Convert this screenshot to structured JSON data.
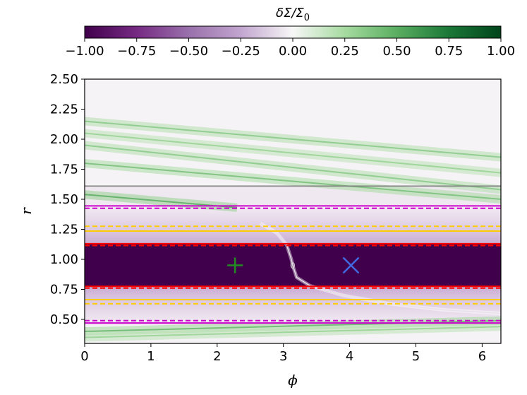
{
  "chart_data": {
    "type": "heatmap",
    "title": "",
    "xlabel": "ϕ",
    "ylabel": "r",
    "xlim": [
      0,
      6.283
    ],
    "ylim": [
      0.3,
      2.5
    ],
    "x_ticks": [
      0,
      1,
      2,
      3,
      4,
      5,
      6
    ],
    "x_tick_labels": [
      "0",
      "1",
      "2",
      "3",
      "4",
      "5",
      "6"
    ],
    "y_ticks": [
      0.5,
      0.75,
      1.0,
      1.25,
      1.5,
      1.75,
      2.0,
      2.25,
      2.5
    ],
    "y_tick_labels": [
      "0.50",
      "0.75",
      "1.00",
      "1.25",
      "1.50",
      "1.75",
      "2.00",
      "2.25",
      "2.50"
    ],
    "colorbar": {
      "label": "δΣ/Σ₀",
      "label_main": "δΣ/Σ",
      "label_sub": "0",
      "min": -1.0,
      "max": 1.0,
      "ticks": [
        -1.0,
        -0.75,
        -0.5,
        -0.25,
        0.0,
        0.25,
        0.5,
        0.75,
        1.0
      ],
      "tick_labels": [
        "−1.00",
        "−0.75",
        "−0.50",
        "−0.25",
        "0.00",
        "0.25",
        "0.50",
        "0.75",
        "1.00"
      ],
      "colormap": "PRGn",
      "low_color": "#40004b",
      "high_color": "#00441b"
    },
    "regions": [
      {
        "r_min": 0.77,
        "r_max": 1.13,
        "value": -1.0
      }
    ],
    "horizontal_lines": [
      {
        "r": 1.61,
        "color": "#808080",
        "style": "solid"
      },
      {
        "r": 1.445,
        "color": "#cc00cc",
        "style": "solid"
      },
      {
        "r": 1.425,
        "color": "#cc00cc",
        "style": "dashed"
      },
      {
        "r": 0.47,
        "color": "#cc00cc",
        "style": "solid"
      },
      {
        "r": 0.49,
        "color": "#cc00cc",
        "style": "dashed"
      },
      {
        "r": 1.275,
        "color": "#ffcc00",
        "style": "dashed"
      },
      {
        "r": 1.235,
        "color": "#ffcc00",
        "style": "solid"
      },
      {
        "r": 0.665,
        "color": "#ffcc00",
        "style": "solid"
      },
      {
        "r": 0.63,
        "color": "#ffcc00",
        "style": "dashed"
      },
      {
        "r": 1.13,
        "color": "#ff0000",
        "style": "solid"
      },
      {
        "r": 1.115,
        "color": "#ff0000",
        "style": "dashed"
      },
      {
        "r": 0.775,
        "color": "#ff0000",
        "style": "solid"
      },
      {
        "r": 0.76,
        "color": "#ff0000",
        "style": "dashed"
      }
    ],
    "markers": [
      {
        "phi": 2.27,
        "r": 0.95,
        "symbol": "+",
        "color": "#228b22"
      },
      {
        "phi": 4.02,
        "r": 0.95,
        "symbol": "x",
        "color": "#4169e1"
      },
      {
        "phi": 3.14,
        "r": 0.95,
        "symbol": "o",
        "color": "#cccccc"
      }
    ],
    "wake_curve": [
      [
        2.65,
        1.3
      ],
      [
        2.9,
        1.22
      ],
      [
        3.05,
        1.12
      ],
      [
        3.12,
        1.0
      ],
      [
        3.14,
        0.95
      ],
      [
        3.2,
        0.85
      ],
      [
        3.4,
        0.78
      ],
      [
        3.9,
        0.7
      ],
      [
        4.6,
        0.63
      ],
      [
        5.4,
        0.58
      ],
      [
        6.283,
        0.55
      ]
    ],
    "stripes": [
      {
        "phi0": 0.0,
        "r0": 2.15,
        "phi1": 6.283,
        "r1": 1.85,
        "value": 0.35
      },
      {
        "phi0": 0.0,
        "r0": 2.05,
        "phi1": 6.283,
        "r1": 1.72,
        "value": 0.3
      },
      {
        "phi0": 0.0,
        "r0": 1.95,
        "phi1": 6.283,
        "r1": 1.58,
        "value": 0.35
      },
      {
        "phi0": 0.0,
        "r0": 1.8,
        "phi1": 6.283,
        "r1": 1.5,
        "value": 0.4
      },
      {
        "phi0": 0.0,
        "r0": 1.54,
        "phi1": 2.3,
        "r1": 1.43,
        "value": 0.5
      },
      {
        "phi0": 0.0,
        "r0": 0.4,
        "phi1": 6.283,
        "r1": 0.49,
        "value": 0.45
      },
      {
        "phi0": 0.0,
        "r0": 0.35,
        "phi1": 6.283,
        "r1": 0.44,
        "value": 0.3
      }
    ]
  }
}
